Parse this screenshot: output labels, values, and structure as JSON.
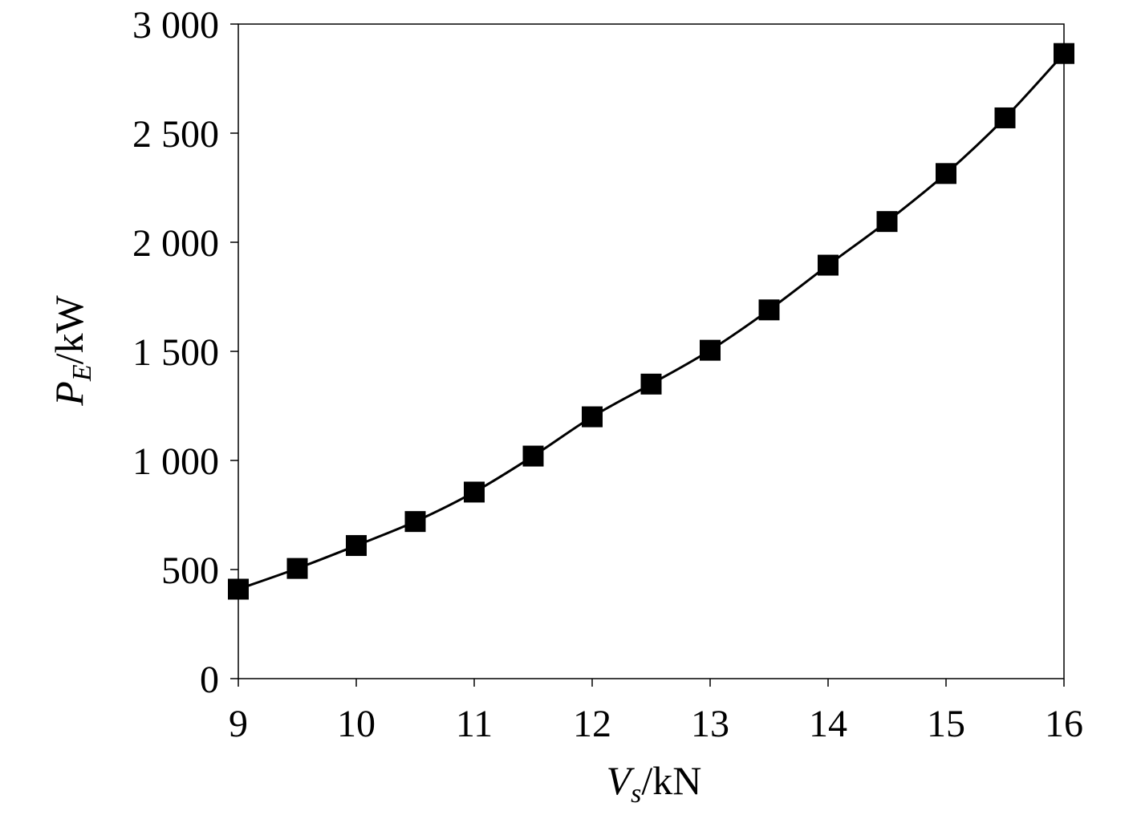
{
  "chart_data": {
    "type": "line",
    "marker": "square",
    "line_color": "#000000",
    "marker_color": "#000000",
    "grid": false,
    "legend": "none",
    "xlim": [
      9,
      16
    ],
    "ylim": [
      0,
      3000
    ],
    "xticks": [
      9,
      10,
      11,
      12,
      13,
      14,
      15,
      16
    ],
    "xtick_labels": [
      "9",
      "10",
      "11",
      "12",
      "13",
      "14",
      "15",
      "16"
    ],
    "yticks": [
      0,
      500,
      1000,
      1500,
      2000,
      2500,
      3000
    ],
    "ytick_labels": [
      "0",
      "500",
      "1 000",
      "1 500",
      "2 000",
      "2 500",
      "3 000"
    ],
    "xlabel": {
      "main": "V",
      "sub": "s",
      "unit": "/kN"
    },
    "ylabel": {
      "main": "P",
      "sub": "E",
      "unit": "/kW"
    },
    "x": [
      9,
      9.5,
      10,
      10.5,
      11,
      11.5,
      12,
      12.5,
      13,
      13.5,
      14,
      14.5,
      15,
      15.5,
      16
    ],
    "y": [
      410,
      505,
      610,
      720,
      855,
      1020,
      1200,
      1350,
      1505,
      1690,
      1895,
      2095,
      2315,
      2570,
      2865
    ]
  }
}
